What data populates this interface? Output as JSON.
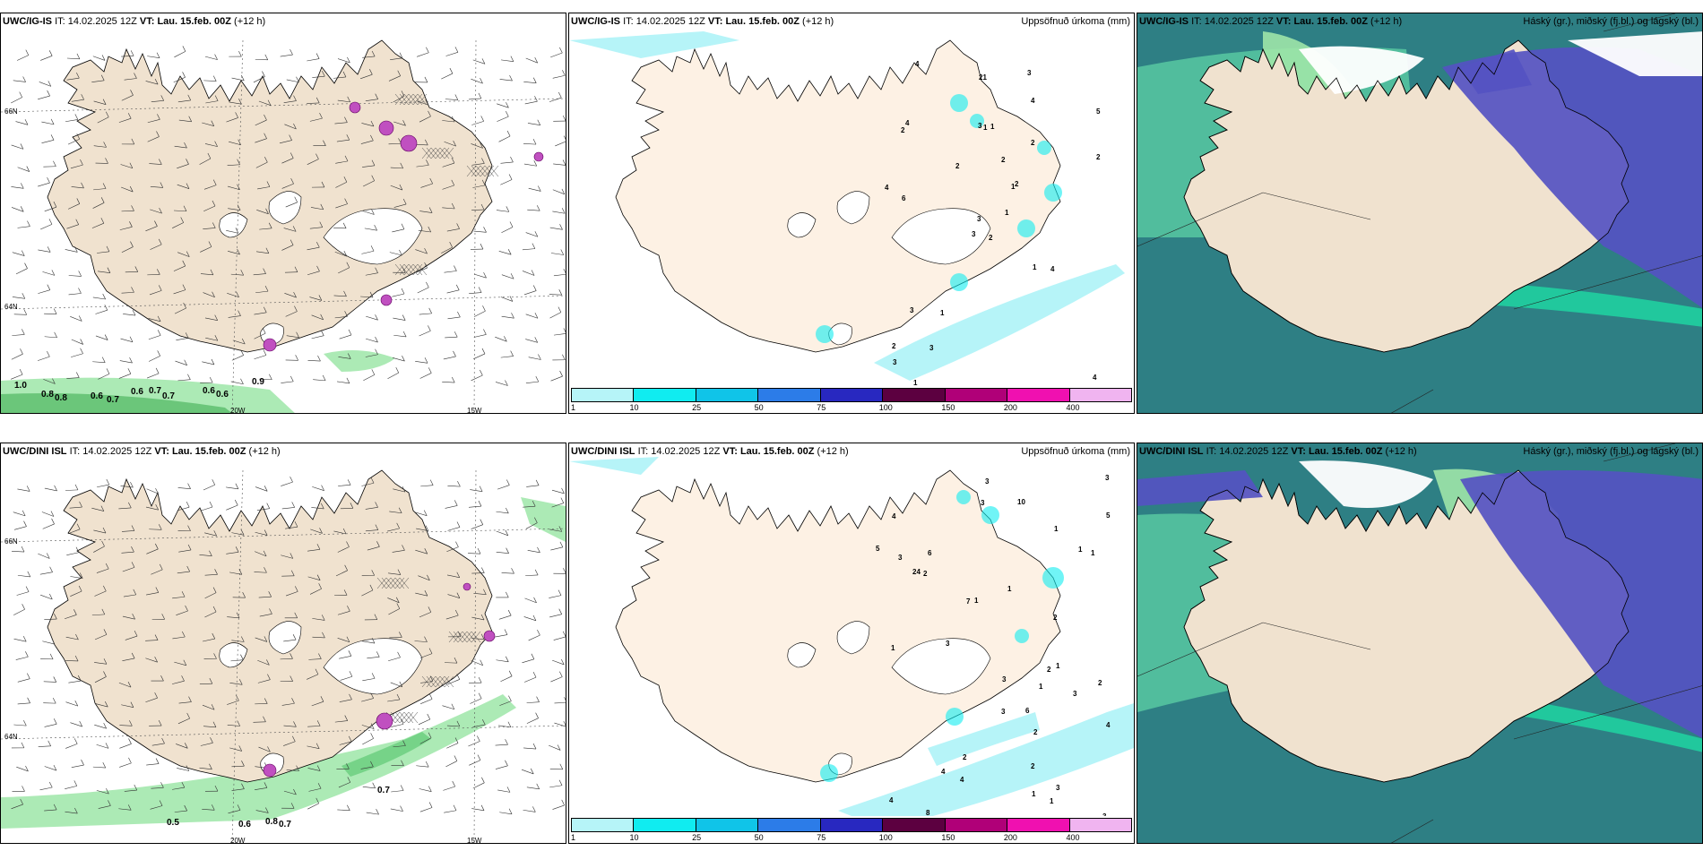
{
  "panels": {
    "r1c1": {
      "model": "UWC/IG-IS",
      "it_label": "IT:",
      "it": "14.02.2025 12Z",
      "vt_label": "VT:",
      "vt": "Lau. 15.feb. 00Z",
      "lead": "(+12 h)"
    },
    "r1c2": {
      "model": "UWC/IG-IS",
      "it_label": "IT:",
      "it": "14.02.2025 12Z",
      "vt_label": "VT:",
      "vt": "Lau. 15.feb. 00Z",
      "lead": "(+12 h)",
      "right": "Uppsöfnuð úrkoma (mm)"
    },
    "r1c3": {
      "model": "UWC/IG-IS",
      "it_label": "IT:",
      "it": "14.02.2025 12Z",
      "vt_label": "VT:",
      "vt": "Lau. 15.feb. 00Z",
      "lead": "(+12 h)",
      "right": "Háský (gr.), miðský (fj.bl.) og lágský (bl.)"
    },
    "r2c1": {
      "model": "UWC/DINI ISL",
      "it_label": "IT:",
      "it": "14.02.2025 12Z",
      "vt_label": "VT:",
      "vt": "Lau. 15.feb. 00Z",
      "lead": "(+12 h)"
    },
    "r2c2": {
      "model": "UWC/DINI ISL",
      "it_label": "IT:",
      "it": "14.02.2025 12Z",
      "vt_label": "VT:",
      "vt": "Lau. 15.feb. 00Z",
      "lead": "(+12 h)",
      "right": "Uppsöfnuð úrkoma (mm)"
    },
    "r2c3": {
      "model": "UWC/DINI ISL",
      "it_label": "IT:",
      "it": "14.02.2025 12Z",
      "vt_label": "VT:",
      "vt": "Lau. 15.feb. 00Z",
      "lead": "(+12 h)",
      "right": "Háský (gr.), miðský (fj.bl.) og lágský (bl.)"
    }
  },
  "grid": {
    "lat66": "66N",
    "lat64": "64N",
    "lon20": "20W",
    "lon15": "15W"
  },
  "scale": {
    "ticks": [
      "1",
      "10",
      "25",
      "50",
      "75",
      "100",
      "150",
      "200",
      "400"
    ],
    "colors": [
      "#b6f4f8",
      "#10ecf0",
      "#10c4e8",
      "#2c7ce8",
      "#2828c0",
      "#5c0040",
      "#b00078",
      "#f010b0",
      "#f0b4f0"
    ]
  },
  "colors": {
    "land": "#f0e2cf",
    "snow_free": "#ffffff",
    "precip_land": "#fdf1e4",
    "green_high": "#9ee6a8",
    "teal_low": "#2e7f84",
    "blue_mid": "#5553c2"
  },
  "wind_values_r1": [
    "1.0",
    "0.8",
    "0.8",
    "0.6",
    "0.7",
    "0.6",
    "0.7",
    "0.7",
    "0.6",
    "0.6",
    "0.9"
  ],
  "wind_values_r2": [
    "0.5",
    "0.6",
    "0.8",
    "0.7",
    "0.7"
  ],
  "precip_r1": [
    "2",
    "2",
    "3",
    "2",
    "1",
    "1",
    "3",
    "1",
    "4",
    "1",
    "4",
    "4",
    "6",
    "5",
    "3",
    "2",
    "1",
    "3",
    "2",
    "3",
    "2",
    "3",
    "3",
    "1",
    "2",
    "4",
    "4",
    "21",
    "4",
    "1",
    "2"
  ],
  "precip_r2": [
    "2",
    "2",
    "4",
    "3",
    "2",
    "4",
    "2",
    "7",
    "1",
    "1",
    "1",
    "10",
    "1",
    "1",
    "8",
    "2",
    "6",
    "1",
    "1",
    "2",
    "4",
    "4",
    "3",
    "3",
    "24",
    "3",
    "5",
    "3",
    "3",
    "3",
    "3",
    "3",
    "1",
    "4",
    "6",
    "5",
    "3",
    "2",
    "1",
    "1"
  ]
}
